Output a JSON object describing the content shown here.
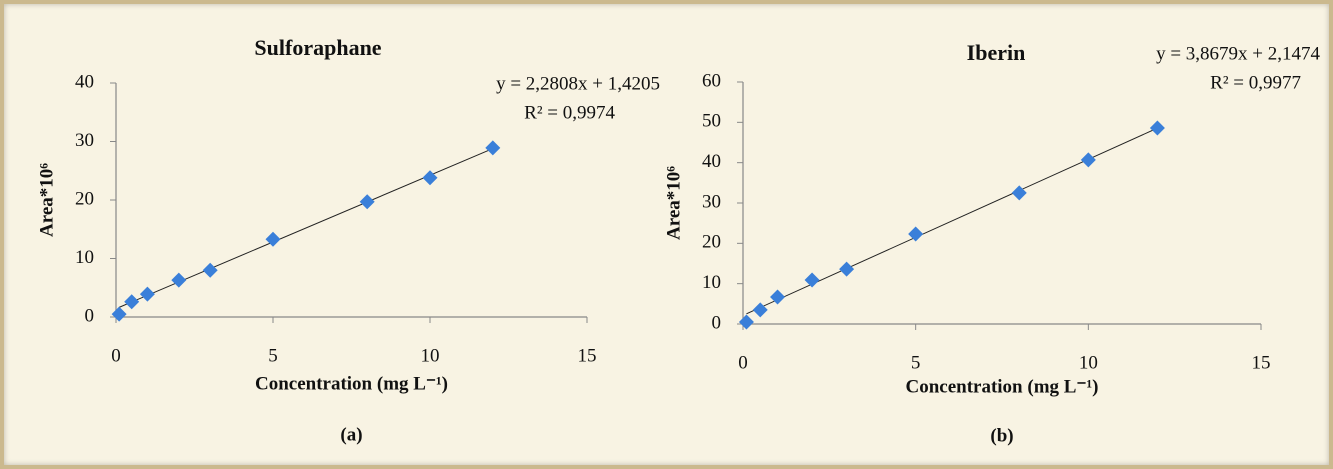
{
  "chart_data": [
    {
      "type": "scatter",
      "title": "Sulforaphane",
      "caption": "(a)",
      "x_label": "Concentration (mg L⁻¹)",
      "y_label": "Area*10⁶",
      "series": [
        {
          "color": "#3a7fd9",
          "x": [
            0.1,
            0.5,
            1,
            2,
            3,
            5,
            8,
            10,
            12
          ],
          "values": [
            0.5,
            2.6,
            3.9,
            6.3,
            8.0,
            13.3,
            19.7,
            23.8,
            28.9
          ]
        }
      ],
      "trendline": {
        "equation": "y = 2,2808x + 1,4205",
        "slope": 2.2808,
        "intercept": 1.4205,
        "r2": "R² = 0,9974"
      },
      "xlim": [
        0,
        15
      ],
      "xticks": [
        0,
        5,
        10,
        15
      ],
      "ylim": [
        0,
        40
      ],
      "yticks": [
        0,
        10,
        20,
        30,
        40
      ],
      "grid": false
    },
    {
      "type": "scatter",
      "title": "Iberin",
      "caption": "(b)",
      "x_label": "Concentration (mg L⁻¹)",
      "y_label": "Area*10⁶",
      "series": [
        {
          "color": "#3a7fd9",
          "x": [
            0.1,
            0.5,
            1,
            2,
            3,
            5,
            8,
            10,
            12
          ],
          "values": [
            0.5,
            3.5,
            6.7,
            10.9,
            13.6,
            22.3,
            32.5,
            40.7,
            48.6
          ]
        }
      ],
      "trendline": {
        "equation": "y = 3,8679x + 2,1474",
        "slope": 3.8679,
        "intercept": 2.1474,
        "r2": "R² = 0,9977"
      },
      "xlim": [
        0,
        15
      ],
      "xticks": [
        0,
        5,
        10,
        15
      ],
      "ylim": [
        0,
        60
      ],
      "yticks": [
        0,
        10,
        20,
        30,
        40,
        50,
        60
      ],
      "grid": false
    }
  ]
}
